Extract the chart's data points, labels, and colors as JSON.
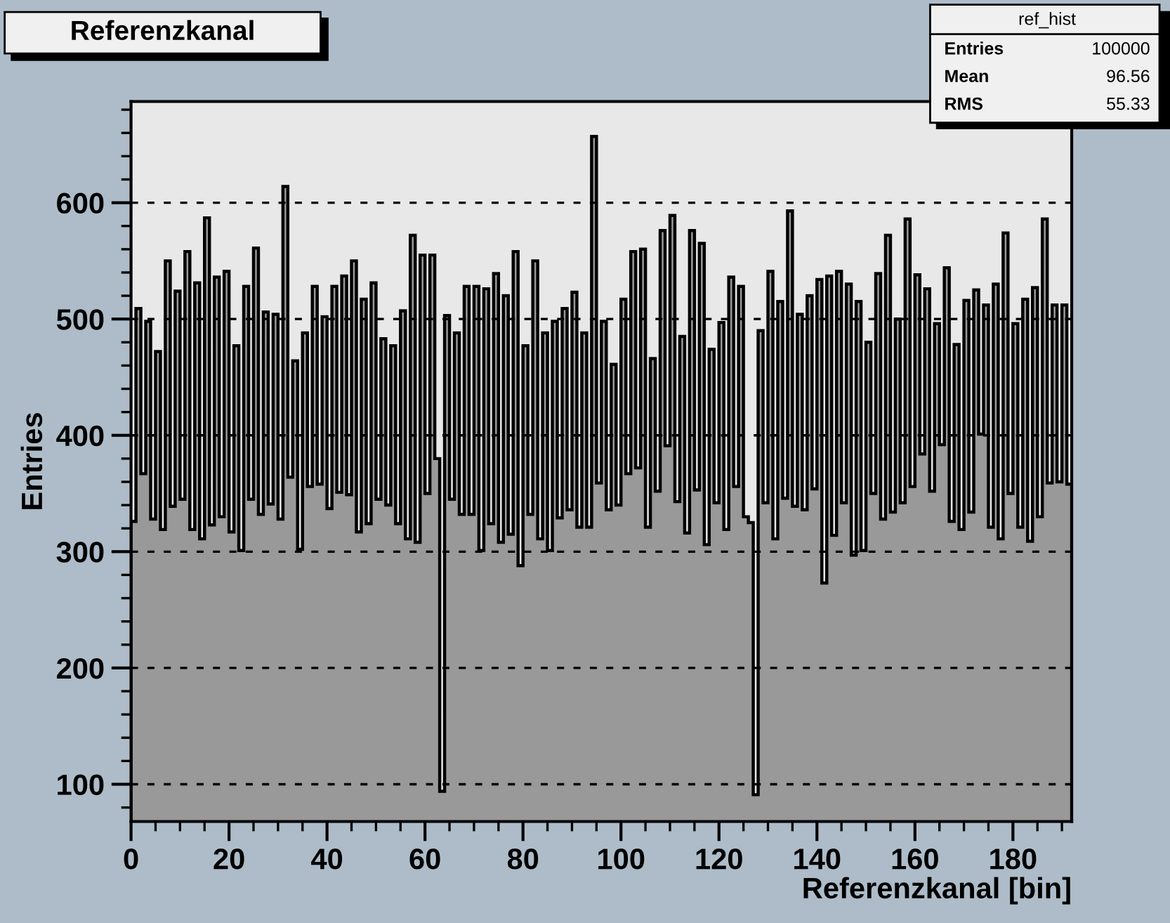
{
  "chart_data": {
    "type": "histogram",
    "title": "Referenzkanal",
    "xlabel": "Referenzkanal [bin]",
    "ylabel": "Entries",
    "annotations": [
      "ref_hist",
      "Entries",
      "100000",
      "Mean",
      "96.56",
      "RMS",
      "55.33"
    ],
    "bins": [
      0,
      1,
      2,
      3,
      4,
      5,
      6,
      7,
      8,
      9,
      10,
      11,
      12,
      13,
      14,
      15,
      16,
      17,
      18,
      19,
      20,
      21,
      22,
      23,
      24,
      25,
      26,
      27,
      28,
      29,
      30,
      31,
      32,
      33,
      34,
      35,
      36,
      37,
      38,
      39,
      40,
      41,
      42,
      43,
      44,
      45,
      46,
      47,
      48,
      49,
      50,
      51,
      52,
      53,
      54,
      55,
      56,
      57,
      58,
      59,
      60,
      61,
      62,
      63,
      64,
      65,
      66,
      67,
      68,
      69,
      70,
      71,
      72,
      73,
      74,
      75,
      76,
      77,
      78,
      79,
      80,
      81,
      82,
      83,
      84,
      85,
      86,
      87,
      88,
      89,
      90,
      91,
      92,
      93,
      94,
      95,
      96,
      97,
      98,
      99,
      100,
      101,
      102,
      103,
      104,
      105,
      106,
      107,
      108,
      109,
      110,
      111,
      112,
      113,
      114,
      115,
      116,
      117,
      118,
      119,
      120,
      121,
      122,
      123,
      124,
      125,
      126,
      127,
      128,
      129,
      130,
      131,
      132,
      133,
      134,
      135,
      136,
      137,
      138,
      139,
      140,
      141,
      142,
      143,
      144,
      145,
      146,
      147,
      148,
      149,
      150,
      151,
      152,
      153,
      154,
      155,
      156,
      157,
      158,
      159,
      160,
      161,
      162,
      163,
      164,
      165,
      166,
      167,
      168,
      169,
      170,
      171,
      172,
      173,
      174,
      175,
      176,
      177,
      178,
      179,
      180,
      181,
      182,
      183,
      184,
      185,
      186,
      187,
      188,
      189,
      190,
      191,
      192
    ],
    "values": [
      326,
      509,
      367,
      498,
      328,
      472,
      319,
      550,
      339,
      524,
      345,
      558,
      319,
      531,
      311,
      587,
      323,
      536,
      330,
      541,
      317,
      477,
      301,
      528,
      345,
      561,
      332,
      506,
      341,
      504,
      328,
      614,
      364,
      464,
      302,
      488,
      356,
      528,
      358,
      502,
      337,
      528,
      351,
      537,
      349,
      550,
      317,
      517,
      324,
      531,
      345,
      483,
      340,
      477,
      324,
      507,
      311,
      572,
      308,
      555,
      350,
      555,
      380,
      94,
      503,
      345,
      488,
      332,
      528,
      332,
      528,
      301,
      526,
      324,
      539,
      308,
      520,
      315,
      558,
      288,
      477,
      332,
      550,
      311,
      488,
      301,
      498,
      329,
      509,
      336,
      523,
      321,
      488,
      321,
      657,
      359,
      498,
      336,
      461,
      340,
      517,
      367,
      558,
      372,
      560,
      321,
      466,
      352,
      576,
      391,
      589,
      343,
      485,
      316,
      576,
      353,
      565,
      306,
      474,
      342,
      497,
      319,
      536,
      356,
      528,
      330,
      325,
      91,
      490,
      342,
      541,
      311,
      515,
      346,
      593,
      339,
      504,
      336,
      520,
      354,
      534,
      273,
      537,
      314,
      541,
      342,
      530,
      297,
      515,
      301,
      480,
      350,
      539,
      328,
      572,
      334,
      500,
      342,
      586,
      356,
      538,
      384,
      526,
      352,
      496,
      392,
      544,
      326,
      478,
      319,
      516,
      334,
      525,
      401,
      512,
      321,
      530,
      311,
      574,
      350,
      496,
      321,
      517,
      309,
      527,
      330,
      586,
      359,
      512,
      360,
      512,
      358
    ],
    "color": "#999999",
    "xlim": [
      0,
      192
    ],
    "ylim": [
      68,
      687
    ],
    "xticks": [
      0,
      20,
      40,
      60,
      80,
      100,
      120,
      140,
      160,
      180
    ],
    "yticks": [
      100,
      200,
      300,
      400,
      500,
      600
    ],
    "grid": "y"
  }
}
